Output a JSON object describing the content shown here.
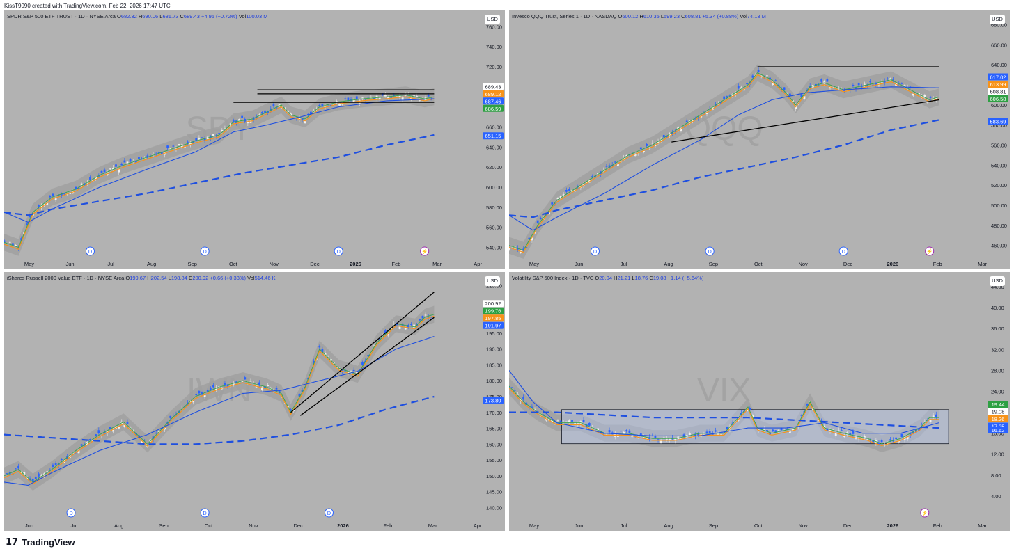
{
  "header": {
    "attribution": "KissT9090 created with TradingView.com, Feb 22, 2026 17:47 UTC"
  },
  "footer": {
    "logo": "17",
    "brand": "TradingView"
  },
  "chart_data": [
    {
      "type": "candlestick",
      "title": "SPDR S&P 500 ETF TRUST · 1D · NYSE Arca",
      "ohlc": {
        "o": "682.32",
        "h": "690.06",
        "l": "681.73",
        "c": "689.43",
        "chg": "+4.95 (+0.72%)",
        "vol": "100.03 M"
      },
      "watermark": "SPY",
      "currency": "USD",
      "y_ticks": [
        "760.00",
        "740.00",
        "720.00",
        "700.00",
        "680.00",
        "660.00",
        "640.00",
        "620.00",
        "600.00",
        "580.00",
        "560.00",
        "540.00"
      ],
      "x_ticks": [
        "May",
        "Jun",
        "Jul",
        "Aug",
        "Sep",
        "Oct",
        "Nov",
        "Dec",
        "2026",
        "Feb",
        "Mar",
        "Apr"
      ],
      "ylim": [
        532,
        772
      ],
      "price_labels": [
        {
          "text": "689.43",
          "color": "#ffffff",
          "value": 689.43
        },
        {
          "text": "689.12",
          "color": "#f7931a",
          "value": 689.12
        },
        {
          "text": "687.46",
          "color": "#2962ff",
          "value": 687.46
        },
        {
          "text": "686.59",
          "color": "#2ea043",
          "value": 686.59
        },
        {
          "text": "651.15",
          "color": "#2962ff",
          "value": 651.15
        }
      ],
      "close_path": [
        [
          0,
          545
        ],
        [
          0.03,
          540
        ],
        [
          0.06,
          575
        ],
        [
          0.1,
          590
        ],
        [
          0.15,
          598
        ],
        [
          0.2,
          612
        ],
        [
          0.25,
          622
        ],
        [
          0.3,
          630
        ],
        [
          0.35,
          638
        ],
        [
          0.4,
          646
        ],
        [
          0.45,
          652
        ],
        [
          0.48,
          665
        ],
        [
          0.52,
          668
        ],
        [
          0.55,
          675
        ],
        [
          0.58,
          682
        ],
        [
          0.6,
          672
        ],
        [
          0.63,
          668
        ],
        [
          0.66,
          680
        ],
        [
          0.7,
          685
        ],
        [
          0.75,
          688
        ],
        [
          0.8,
          690
        ],
        [
          0.84,
          692
        ],
        [
          0.88,
          688
        ],
        [
          0.9,
          690
        ]
      ],
      "sma50": [
        [
          0,
          575
        ],
        [
          0.05,
          565
        ],
        [
          0.1,
          578
        ],
        [
          0.2,
          600
        ],
        [
          0.3,
          618
        ],
        [
          0.4,
          635
        ],
        [
          0.48,
          655
        ],
        [
          0.55,
          662
        ],
        [
          0.62,
          670
        ],
        [
          0.7,
          680
        ],
        [
          0.8,
          686
        ],
        [
          0.9,
          688
        ]
      ],
      "sma200": [
        [
          0,
          575
        ],
        [
          0.05,
          572
        ],
        [
          0.1,
          578
        ],
        [
          0.2,
          586
        ],
        [
          0.3,
          594
        ],
        [
          0.4,
          604
        ],
        [
          0.5,
          614
        ],
        [
          0.6,
          622
        ],
        [
          0.7,
          630
        ],
        [
          0.8,
          642
        ],
        [
          0.9,
          652
        ]
      ],
      "lines": [
        [
          [
            0.48,
            684.5
          ],
          [
            0.9,
            684.5
          ]
        ],
        [
          [
            0.53,
            693
          ],
          [
            0.9,
            693
          ]
        ],
        [
          [
            0.53,
            697
          ],
          [
            0.9,
            697
          ]
        ]
      ],
      "event_markers": [
        {
          "label": "D",
          "x": 0.18,
          "type": "dividend"
        },
        {
          "label": "D",
          "x": 0.42,
          "type": "dividend"
        },
        {
          "label": "D",
          "x": 0.7,
          "type": "dividend"
        },
        {
          "label": "⚡",
          "x": 0.88,
          "type": "earnings"
        }
      ]
    },
    {
      "type": "candlestick",
      "title": "Invesco QQQ Trust, Series 1 · 1D · NASDAQ",
      "ohlc": {
        "o": "600.12",
        "h": "610.35",
        "l": "599.23",
        "c": "608.81",
        "chg": "+5.34 (+0.88%)",
        "vol": "74.13 M"
      },
      "watermark": "QQQ",
      "currency": "USD",
      "y_ticks": [
        "680.00",
        "660.00",
        "640.00",
        "620.00",
        "600.00",
        "580.00",
        "560.00",
        "540.00",
        "520.00",
        "500.00",
        "480.00",
        "460.00"
      ],
      "x_ticks": [
        "May",
        "Jun",
        "Jul",
        "Aug",
        "Sep",
        "Oct",
        "Nov",
        "Dec",
        "2026",
        "Feb",
        "Mar"
      ],
      "ylim": [
        450,
        690
      ],
      "price_labels": [
        {
          "text": "617.02",
          "color": "#2962ff",
          "value": 617.02
        },
        {
          "text": "613.99",
          "color": "#f7931a",
          "value": 613.99
        },
        {
          "text": "608.81",
          "color": "#ffffff",
          "value": 608.81
        },
        {
          "text": "606.58",
          "color": "#2ea043",
          "value": 606.58
        },
        {
          "text": "583.69",
          "color": "#2962ff",
          "value": 583.69
        }
      ],
      "close_path": [
        [
          0,
          460
        ],
        [
          0.03,
          455
        ],
        [
          0.06,
          480
        ],
        [
          0.1,
          505
        ],
        [
          0.15,
          520
        ],
        [
          0.2,
          535
        ],
        [
          0.25,
          550
        ],
        [
          0.3,
          560
        ],
        [
          0.35,
          575
        ],
        [
          0.4,
          590
        ],
        [
          0.45,
          605
        ],
        [
          0.5,
          620
        ],
        [
          0.52,
          632
        ],
        [
          0.55,
          625
        ],
        [
          0.58,
          612
        ],
        [
          0.6,
          600
        ],
        [
          0.63,
          618
        ],
        [
          0.66,
          622
        ],
        [
          0.7,
          615
        ],
        [
          0.75,
          620
        ],
        [
          0.8,
          625
        ],
        [
          0.84,
          615
        ],
        [
          0.88,
          605
        ],
        [
          0.9,
          608
        ]
      ],
      "sma50": [
        [
          0,
          490
        ],
        [
          0.05,
          475
        ],
        [
          0.1,
          488
        ],
        [
          0.2,
          512
        ],
        [
          0.3,
          540
        ],
        [
          0.4,
          565
        ],
        [
          0.48,
          590
        ],
        [
          0.55,
          605
        ],
        [
          0.62,
          612
        ],
        [
          0.7,
          615
        ],
        [
          0.8,
          618
        ],
        [
          0.9,
          617
        ]
      ],
      "sma200": [
        [
          0,
          490
        ],
        [
          0.05,
          488
        ],
        [
          0.1,
          495
        ],
        [
          0.2,
          505
        ],
        [
          0.3,
          515
        ],
        [
          0.4,
          528
        ],
        [
          0.5,
          538
        ],
        [
          0.6,
          548
        ],
        [
          0.7,
          560
        ],
        [
          0.8,
          575
        ],
        [
          0.9,
          585
        ]
      ],
      "lines": [
        [
          [
            0.34,
            563
          ],
          [
            0.9,
            605
          ]
        ],
        [
          [
            0.52,
            638
          ],
          [
            0.9,
            638
          ]
        ]
      ],
      "event_markers": [
        {
          "label": "D",
          "x": 0.18,
          "type": "dividend"
        },
        {
          "label": "D",
          "x": 0.42,
          "type": "dividend"
        },
        {
          "label": "D",
          "x": 0.7,
          "type": "dividend"
        },
        {
          "label": "⚡",
          "x": 0.88,
          "type": "earnings"
        }
      ]
    },
    {
      "type": "candlestick",
      "title": "iShares Russell 2000 Value ETF · 1D · NYSE Arca",
      "ohlc": {
        "o": "199.67",
        "h": "202.54",
        "l": "198.84",
        "c": "200.92",
        "chg": "+0.66 (+0.33%)",
        "vol": "514.46 K"
      },
      "watermark": "IWN",
      "currency": "USD",
      "y_ticks": [
        "210.00",
        "205.00",
        "200.00",
        "195.00",
        "190.00",
        "185.00",
        "180.00",
        "175.00",
        "170.00",
        "165.00",
        "160.00",
        "155.00",
        "150.00",
        "145.00",
        "140.00"
      ],
      "x_ticks": [
        "Jun",
        "Jul",
        "Aug",
        "Sep",
        "Oct",
        "Nov",
        "Dec",
        "2026",
        "Feb",
        "Mar",
        "Apr"
      ],
      "ylim": [
        137,
        213
      ],
      "price_labels": [
        {
          "text": "200.92",
          "color": "#ffffff",
          "value": 200.92
        },
        {
          "text": "199.76",
          "color": "#2ea043",
          "value": 199.76
        },
        {
          "text": "197.85",
          "color": "#f7931a",
          "value": 197.85
        },
        {
          "text": "191.97",
          "color": "#2962ff",
          "value": 191.97
        },
        {
          "text": "173.80",
          "color": "#2962ff",
          "value": 173.8
        }
      ],
      "close_path": [
        [
          0,
          150
        ],
        [
          0.03,
          152
        ],
        [
          0.06,
          148
        ],
        [
          0.1,
          152
        ],
        [
          0.15,
          158
        ],
        [
          0.2,
          163
        ],
        [
          0.25,
          167
        ],
        [
          0.3,
          160
        ],
        [
          0.35,
          168
        ],
        [
          0.4,
          175
        ],
        [
          0.45,
          178
        ],
        [
          0.5,
          180
        ],
        [
          0.55,
          178
        ],
        [
          0.58,
          176
        ],
        [
          0.6,
          170
        ],
        [
          0.63,
          178
        ],
        [
          0.66,
          190
        ],
        [
          0.7,
          184
        ],
        [
          0.74,
          182
        ],
        [
          0.78,
          192
        ],
        [
          0.82,
          198
        ],
        [
          0.86,
          197
        ],
        [
          0.88,
          200
        ],
        [
          0.9,
          201
        ]
      ],
      "sma50": [
        [
          0,
          148
        ],
        [
          0.05,
          147
        ],
        [
          0.1,
          151
        ],
        [
          0.2,
          158
        ],
        [
          0.3,
          163
        ],
        [
          0.4,
          170
        ],
        [
          0.5,
          176
        ],
        [
          0.58,
          177
        ],
        [
          0.66,
          180
        ],
        [
          0.74,
          183
        ],
        [
          0.82,
          190
        ],
        [
          0.9,
          194
        ]
      ],
      "sma200": [
        [
          0,
          163
        ],
        [
          0.1,
          162
        ],
        [
          0.2,
          161
        ],
        [
          0.3,
          160
        ],
        [
          0.4,
          160
        ],
        [
          0.5,
          161
        ],
        [
          0.6,
          163
        ],
        [
          0.7,
          166
        ],
        [
          0.8,
          171
        ],
        [
          0.9,
          175
        ]
      ],
      "lines": [
        [
          [
            0.6,
            170
          ],
          [
            0.9,
            208
          ]
        ],
        [
          [
            0.62,
            169
          ],
          [
            0.9,
            200
          ]
        ]
      ],
      "event_markers": [
        {
          "label": "D",
          "x": 0.14,
          "type": "dividend"
        },
        {
          "label": "D",
          "x": 0.42,
          "type": "dividend"
        },
        {
          "label": "D",
          "x": 0.68,
          "type": "dividend"
        }
      ]
    },
    {
      "type": "candlestick",
      "title": "Volatility S&P 500 Index · 1D · TVC",
      "ohlc": {
        "o": "20.04",
        "h": "21.21",
        "l": "18.76",
        "c": "19.08",
        "chg": "−1.14 (−5.64%)",
        "vol": ""
      },
      "watermark": "VIX",
      "currency": "USD",
      "y_ticks": [
        "44.00",
        "40.00",
        "36.00",
        "32.00",
        "28.00",
        "24.00",
        "20.00",
        "16.00",
        "12.00",
        "8.00",
        "4.00"
      ],
      "x_ticks": [
        "May",
        "Jun",
        "Jul",
        "Aug",
        "Sep",
        "Oct",
        "Nov",
        "Dec",
        "2026",
        "Feb",
        "Mar"
      ],
      "ylim": [
        0,
        46
      ],
      "price_labels": [
        {
          "text": "19.44",
          "color": "#2ea043",
          "value": 19.44
        },
        {
          "text": "19.08",
          "color": "#ffffff",
          "value": 19.08
        },
        {
          "text": "18.26",
          "color": "#f7931a",
          "value": 18.26
        },
        {
          "text": "17.25",
          "color": "#2962ff",
          "value": 17.25
        },
        {
          "text": "16.62",
          "color": "#2962ff",
          "value": 16.62
        }
      ],
      "close_path": [
        [
          0,
          25
        ],
        [
          0.03,
          22
        ],
        [
          0.06,
          20
        ],
        [
          0.1,
          18
        ],
        [
          0.15,
          18
        ],
        [
          0.2,
          16
        ],
        [
          0.25,
          16
        ],
        [
          0.3,
          15
        ],
        [
          0.35,
          15
        ],
        [
          0.4,
          16
        ],
        [
          0.45,
          16
        ],
        [
          0.5,
          21
        ],
        [
          0.52,
          17
        ],
        [
          0.55,
          16
        ],
        [
          0.6,
          17
        ],
        [
          0.63,
          22
        ],
        [
          0.66,
          17
        ],
        [
          0.7,
          16
        ],
        [
          0.75,
          15
        ],
        [
          0.78,
          14
        ],
        [
          0.82,
          15
        ],
        [
          0.86,
          17
        ],
        [
          0.88,
          19
        ],
        [
          0.9,
          19
        ]
      ],
      "sma50": [
        [
          0,
          28
        ],
        [
          0.05,
          22
        ],
        [
          0.1,
          18
        ],
        [
          0.2,
          16
        ],
        [
          0.3,
          15.5
        ],
        [
          0.4,
          15.5
        ],
        [
          0.5,
          17
        ],
        [
          0.58,
          17
        ],
        [
          0.66,
          18
        ],
        [
          0.74,
          16
        ],
        [
          0.82,
          16
        ],
        [
          0.9,
          18
        ]
      ],
      "sma200": [
        [
          0,
          20
        ],
        [
          0.1,
          20
        ],
        [
          0.2,
          19.5
        ],
        [
          0.3,
          19
        ],
        [
          0.4,
          19
        ],
        [
          0.5,
          19
        ],
        [
          0.6,
          18.5
        ],
        [
          0.7,
          18
        ],
        [
          0.8,
          17.5
        ],
        [
          0.9,
          17
        ]
      ],
      "range_box": [
        0.11,
        14,
        0.92,
        20.5
      ],
      "lines": [],
      "event_markers": [
        {
          "label": "⚡",
          "x": 0.87,
          "type": "earnings"
        }
      ]
    }
  ]
}
